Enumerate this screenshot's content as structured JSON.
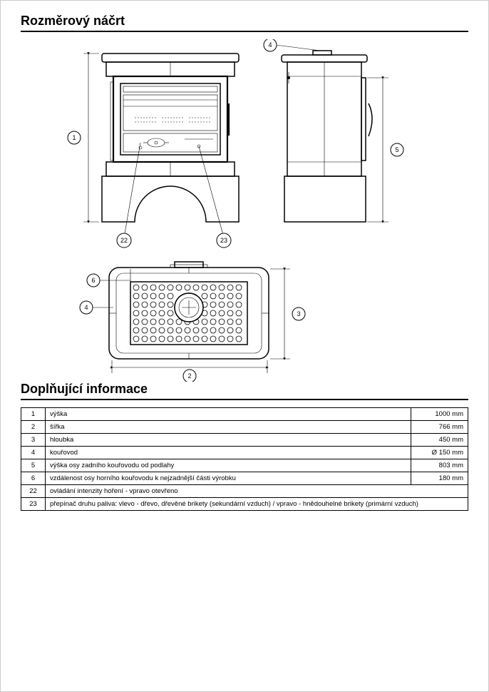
{
  "title_dimensions": "Rozměrový náčrt",
  "title_info": "Doplňující informace",
  "callouts": {
    "c1": "1",
    "c2": "2",
    "c3": "3",
    "c4": "4",
    "c4b": "4",
    "c5": "5",
    "c6": "6",
    "c22": "22",
    "c23": "23"
  },
  "rows": [
    {
      "idx": "1",
      "label": "výška",
      "value": "1000 mm"
    },
    {
      "idx": "2",
      "label": "šířka",
      "value": "766 mm"
    },
    {
      "idx": "3",
      "label": "hloubka",
      "value": "450 mm"
    },
    {
      "idx": "4",
      "label": "kouřovod",
      "value": "Ø 150 mm"
    },
    {
      "idx": "5",
      "label": "výška osy zadního kouřovodu od podlahy",
      "value": "803 mm"
    },
    {
      "idx": "6",
      "label": "vzdálenost osy horního kouřovodu k nejzadnější části výrobku",
      "value": "180 mm"
    },
    {
      "idx": "22",
      "label": "ovládání intenzity hoření - vpravo otevřeno",
      "value": ""
    },
    {
      "idx": "23",
      "label": "přepínač druhu paliva: vlevo - dřevo, dřevěné brikety (sekundární vzduch) / vpravo - hnědouhelné brikety (primární vzduch)",
      "value": ""
    }
  ],
  "colors": {
    "line": "#000000",
    "bg": "#ffffff"
  }
}
